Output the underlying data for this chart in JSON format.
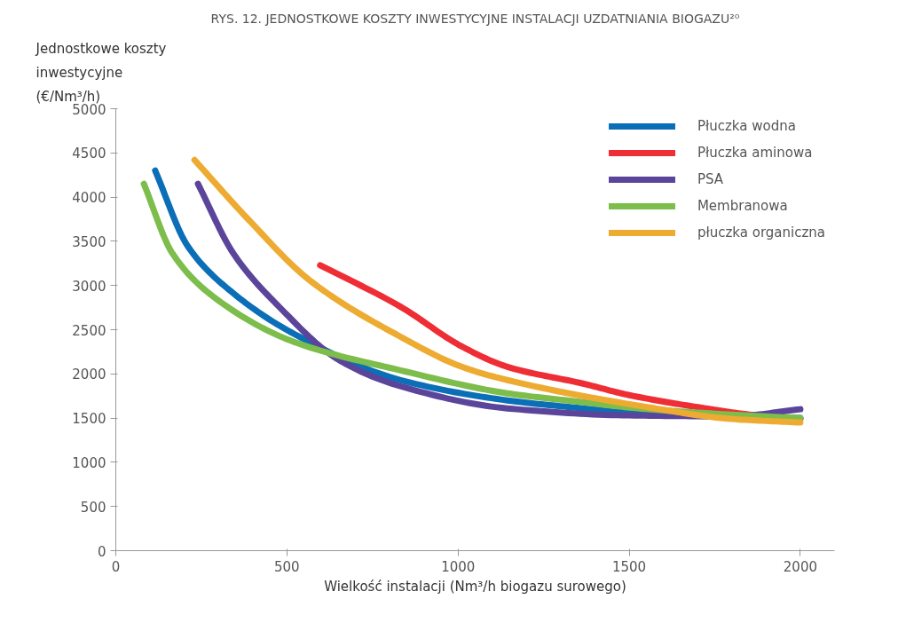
{
  "chart_data": {
    "type": "line",
    "title": "RYS. 12. JEDNOSTKOWE KOSZTY INWESTYCYJNE INSTALACJI UZDATNIANIA BIOGAZU²⁰",
    "xlabel": "Wielkość instalacji (Nm³/h biogazu surowego)",
    "ylabel": "Jednostkowe koszty\ninwestycyjne\n(€/Nm³/h)",
    "xlim": [
      0,
      2100
    ],
    "xticks": [
      0,
      500,
      1000,
      1500,
      2000
    ],
    "ylim": [
      0,
      5000
    ],
    "yticks": [
      0,
      500,
      1000,
      1500,
      2000,
      2500,
      3000,
      3500,
      4000,
      4500,
      5000
    ],
    "grid": false,
    "legend": "top right",
    "line_style": "solid",
    "marker": "none",
    "series": [
      {
        "name": "Płuczka wodna",
        "color": "#0a6fb7",
        "x": [
          115,
          211,
          344,
          522,
          832,
          1144,
          1365,
          1500,
          1750,
          2000
        ],
        "values": [
          4300,
          3440,
          2910,
          2450,
          1930,
          1700,
          1610,
          1560,
          1520,
          1500
        ]
      },
      {
        "name": "Płuczka aminowa",
        "color": "#ee2d35",
        "x": [
          597,
          832,
          1011,
          1144,
          1365,
          1500,
          1723,
          1850,
          2000
        ],
        "values": [
          3230,
          2760,
          2310,
          2080,
          1890,
          1760,
          1610,
          1540,
          1490
        ]
      },
      {
        "name": "PSA",
        "color": "#5b459b",
        "x": [
          240,
          344,
          477,
          655,
          832,
          1144,
          1500,
          1800,
          2000
        ],
        "values": [
          4150,
          3360,
          2760,
          2150,
          1860,
          1610,
          1530,
          1520,
          1600
        ]
      },
      {
        "name": "Membranowa",
        "color": "#7cbd4b",
        "x": [
          82,
          166,
          300,
          522,
          832,
          1144,
          1365,
          1500,
          1750,
          2000
        ],
        "values": [
          4150,
          3360,
          2830,
          2360,
          2040,
          1780,
          1680,
          1620,
          1550,
          1500
        ]
      },
      {
        "name": "płuczka organiczna",
        "color": "#eeab32",
        "x": [
          230,
          389,
          566,
          832,
          1011,
          1144,
          1544,
          1800,
          2000
        ],
        "values": [
          4420,
          3740,
          3060,
          2420,
          2080,
          1930,
          1630,
          1490,
          1450
        ]
      }
    ]
  }
}
